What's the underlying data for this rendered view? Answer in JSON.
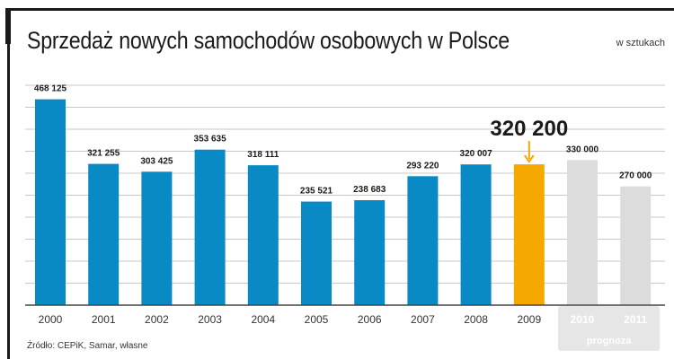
{
  "chart_data": {
    "type": "bar",
    "title": "Sprzedaż nowych samochodów osobowych w Polsce",
    "unit": "w sztukach",
    "categories": [
      "2000",
      "2001",
      "2002",
      "2003",
      "2004",
      "2005",
      "2006",
      "2007",
      "2008",
      "2009",
      "2010",
      "2011"
    ],
    "values": [
      468125,
      321255,
      303425,
      353635,
      318111,
      235521,
      238683,
      293220,
      320007,
      320200,
      330000,
      270000
    ],
    "labels": [
      "468 125",
      "321 255",
      "303 425",
      "353 635",
      "318 111",
      "235 521",
      "238 683",
      "293 220",
      "320 007",
      "320 200",
      "330 000",
      "270 000"
    ],
    "highlight_index": 9,
    "forecast_indices": [
      10,
      11
    ],
    "forecast_label": "prognoza",
    "ylim": [
      0,
      500000
    ],
    "grid_step": 50000,
    "grid": true,
    "colors": {
      "actual": "#0a8ac4",
      "highlight": "#f5a800",
      "forecast": "#dcdcdc",
      "forecast_label_bg": "#e6e6e6",
      "grid": "#c8c8c8"
    },
    "source": "Źródło: CEPiK, Samar, własne"
  }
}
